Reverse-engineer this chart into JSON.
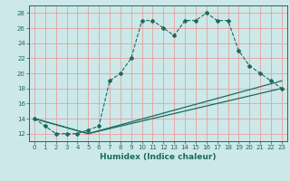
{
  "xlabel": "Humidex (Indice chaleur)",
  "bg_color": "#cde8e8",
  "plot_bg_color": "#cde8e8",
  "line_color": "#1a6b5e",
  "grid_color": "#e8a0a0",
  "xlim": [
    -0.5,
    23.5
  ],
  "ylim": [
    11,
    29
  ],
  "xticks": [
    0,
    1,
    2,
    3,
    4,
    5,
    6,
    7,
    8,
    9,
    10,
    11,
    12,
    13,
    14,
    15,
    16,
    17,
    18,
    19,
    20,
    21,
    22,
    23
  ],
  "yticks": [
    12,
    14,
    16,
    18,
    20,
    22,
    24,
    26,
    28
  ],
  "line1_x": [
    0,
    1,
    2,
    3,
    4,
    5,
    6,
    7,
    8,
    9,
    10,
    11,
    12,
    13,
    14,
    15,
    16,
    17,
    18,
    19,
    20,
    21,
    22,
    23
  ],
  "line1_y": [
    14,
    13,
    12,
    12,
    12,
    12.5,
    13,
    19,
    20,
    22,
    27,
    27,
    26,
    25,
    27,
    27,
    28,
    27,
    27,
    23,
    21,
    20,
    19,
    18
  ],
  "line2_x": [
    0,
    5,
    23
  ],
  "line2_y": [
    14,
    12,
    19
  ],
  "line3_x": [
    0,
    5,
    23
  ],
  "line3_y": [
    14,
    12,
    18
  ],
  "tick_fontsize": 5.0,
  "xlabel_fontsize": 6.5
}
